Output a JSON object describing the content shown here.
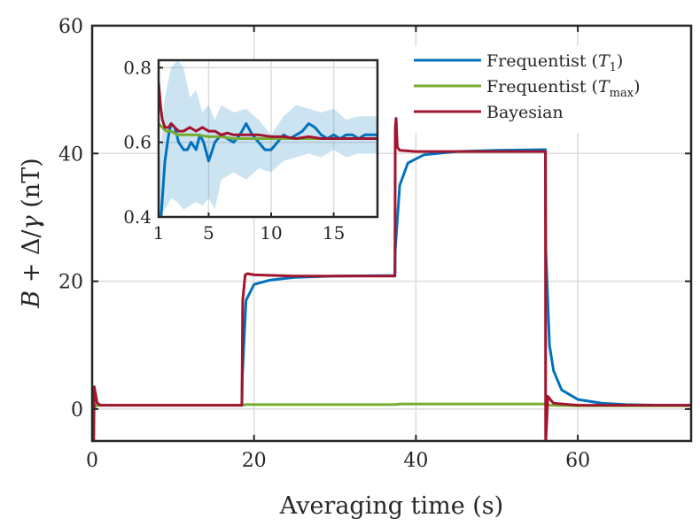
{
  "chart_data": {
    "type": "line",
    "xlabel": "Averaging time (s)",
    "ylabel": "B + Δ/γ (nT)",
    "xlim": [
      0,
      74
    ],
    "ylim": [
      -5,
      60
    ],
    "xticks": [
      "0",
      "20",
      "40",
      "60"
    ],
    "yticks": [
      "0",
      "20",
      "40",
      "60"
    ],
    "grid": true,
    "legend_position": "top-right",
    "series": [
      {
        "name": "Frequentist (T₁)",
        "legend_main": "Frequentist (",
        "legend_sym": "T",
        "legend_sub": "1",
        "legend_end": ")",
        "color": "#0072BD",
        "x": [
          0.3,
          0.5,
          1,
          2,
          5,
          10,
          18.5,
          18.55,
          19,
          20,
          22,
          25,
          30,
          37.4,
          37.45,
          38,
          39,
          41,
          45,
          50,
          56,
          56.05,
          56.5,
          57,
          58,
          60,
          63,
          66,
          70,
          74
        ],
        "y": [
          0.5,
          0.6,
          0.6,
          0.6,
          0.6,
          0.6,
          0.6,
          5,
          17,
          19.5,
          20.2,
          20.6,
          20.8,
          20.9,
          25,
          35,
          38.5,
          39.8,
          40.3,
          40.5,
          40.6,
          25,
          10,
          6,
          3,
          1.5,
          0.9,
          0.7,
          0.6,
          0.6
        ]
      },
      {
        "name": "Frequentist (T_max)",
        "legend_main": "Frequentist (",
        "legend_sym": "T",
        "legend_sub": "max",
        "legend_end": ")",
        "color": "#77AC30",
        "x": [
          0.3,
          0.5,
          1,
          2,
          5,
          10,
          18.5,
          19,
          25,
          37.4,
          38,
          45,
          56,
          56.5,
          60,
          65,
          74
        ],
        "y": [
          0.3,
          0.5,
          0.6,
          0.6,
          0.6,
          0.6,
          0.6,
          0.7,
          0.7,
          0.7,
          0.8,
          0.8,
          0.8,
          0.6,
          0.5,
          0.5,
          0.5
        ]
      },
      {
        "name": "Bayesian",
        "legend_main": "Bayesian",
        "legend_sym": "",
        "legend_sub": "",
        "legend_end": "",
        "color": "#A2142F",
        "x": [
          0.2,
          0.25,
          0.4,
          0.6,
          1,
          2,
          5,
          10,
          18.5,
          18.6,
          18.9,
          19.2,
          20,
          25,
          30,
          37.4,
          37.45,
          37.55,
          37.7,
          38,
          40,
          45,
          50,
          56,
          56.02,
          56.05,
          56.3,
          56.6,
          57,
          60,
          65,
          74
        ],
        "y": [
          -5,
          3.5,
          2.5,
          1,
          0.6,
          0.6,
          0.6,
          0.6,
          0.6,
          17,
          21,
          21.2,
          21,
          20.8,
          20.8,
          20.8,
          44,
          45.5,
          41,
          40.5,
          40.3,
          40.3,
          40.3,
          40.3,
          -5,
          -5,
          2,
          1.5,
          0.9,
          0.6,
          0.6,
          0.6
        ]
      }
    ],
    "inset": {
      "xlim": [
        1,
        18.5
      ],
      "ylim": [
        0.4,
        0.82
      ],
      "xticks": [
        "1",
        "5",
        "10",
        "15"
      ],
      "yticks": [
        "0.4",
        "0.6",
        "0.8"
      ],
      "band": {
        "color": "#0072BD",
        "opacity": 0.2,
        "x": [
          1,
          1.5,
          2,
          2.5,
          3,
          3.5,
          4,
          4.5,
          5,
          5.5,
          6,
          7,
          8,
          9,
          10,
          11,
          12,
          13,
          14,
          15,
          16,
          17,
          18.5
        ],
        "upper": [
          0.52,
          0.72,
          0.8,
          0.82,
          0.8,
          0.72,
          0.74,
          0.68,
          0.7,
          0.66,
          0.7,
          0.68,
          0.69,
          0.66,
          0.62,
          0.67,
          0.7,
          0.69,
          0.68,
          0.69,
          0.66,
          0.67,
          0.67
        ],
        "lower": [
          0.4,
          0.42,
          0.45,
          0.44,
          0.42,
          0.43,
          0.44,
          0.43,
          0.45,
          0.42,
          0.5,
          0.52,
          0.5,
          0.53,
          0.52,
          0.55,
          0.56,
          0.57,
          0.56,
          0.58,
          0.56,
          0.57,
          0.57
        ]
      },
      "series": [
        {
          "color": "#0072BD",
          "x": [
            1.2,
            1.5,
            1.8,
            2,
            2.3,
            2.6,
            3,
            3.3,
            3.6,
            4,
            4.3,
            4.6,
            5,
            5.5,
            6,
            6.5,
            7,
            7.5,
            8,
            8.5,
            9,
            9.5,
            10,
            10.5,
            11,
            11.5,
            12,
            12.5,
            13,
            13.5,
            14,
            14.5,
            15,
            15.5,
            16,
            16.5,
            17,
            17.5,
            18,
            18.5
          ],
          "y": [
            0.4,
            0.55,
            0.62,
            0.65,
            0.64,
            0.6,
            0.58,
            0.58,
            0.6,
            0.58,
            0.62,
            0.6,
            0.55,
            0.6,
            0.62,
            0.61,
            0.6,
            0.62,
            0.65,
            0.62,
            0.6,
            0.58,
            0.58,
            0.6,
            0.62,
            0.61,
            0.62,
            0.63,
            0.65,
            0.64,
            0.62,
            0.61,
            0.62,
            0.61,
            0.62,
            0.62,
            0.61,
            0.62,
            0.62,
            0.62
          ]
        },
        {
          "color": "#77AC30",
          "x": [
            1,
            1.3,
            1.6,
            2,
            2.5,
            3,
            4,
            5,
            6,
            7,
            8,
            9,
            10,
            12,
            14,
            16,
            18.5
          ],
          "y": [
            0.65,
            0.64,
            0.63,
            0.63,
            0.62,
            0.62,
            0.62,
            0.615,
            0.615,
            0.61,
            0.61,
            0.61,
            0.61,
            0.61,
            0.61,
            0.61,
            0.61
          ]
        },
        {
          "color": "#A2142F",
          "x": [
            1,
            1.15,
            1.3,
            1.5,
            1.8,
            2,
            2.3,
            2.6,
            3,
            3.5,
            4,
            4.5,
            5,
            5.5,
            6,
            6.5,
            7,
            7.5,
            8,
            9,
            10,
            11,
            12,
            13,
            14,
            15,
            16,
            17,
            18.5
          ],
          "y": [
            0.76,
            0.7,
            0.66,
            0.64,
            0.64,
            0.65,
            0.64,
            0.63,
            0.63,
            0.64,
            0.63,
            0.64,
            0.63,
            0.63,
            0.62,
            0.625,
            0.62,
            0.62,
            0.62,
            0.62,
            0.615,
            0.615,
            0.61,
            0.615,
            0.61,
            0.61,
            0.61,
            0.61,
            0.61
          ]
        }
      ]
    }
  }
}
